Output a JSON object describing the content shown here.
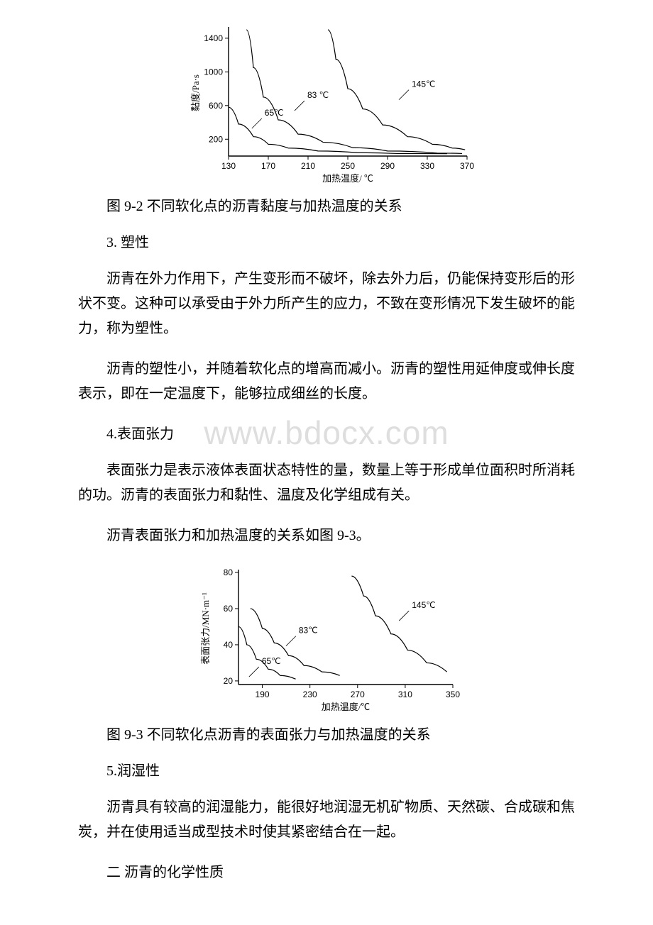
{
  "fig92": {
    "ylabel": "黏度/Pa·s",
    "xlabel": "加热温度/ ℃",
    "yticks": [
      200,
      600,
      1000,
      1400
    ],
    "xticks": [
      130,
      170,
      210,
      250,
      290,
      330,
      370
    ],
    "curve_color": "#000000",
    "axis_color": "#000000",
    "background": "#ffffff",
    "line_width": 1.2,
    "curves": [
      {
        "label": "65℃",
        "label_x": 162,
        "label_y": 430,
        "points": [
          [
            130,
            580
          ],
          [
            140,
            380
          ],
          [
            155,
            230
          ],
          [
            170,
            140
          ],
          [
            190,
            95
          ],
          [
            220,
            60
          ],
          [
            260,
            40
          ],
          [
            300,
            30
          ],
          [
            350,
            28
          ]
        ]
      },
      {
        "label": "83 ℃",
        "label_x": 205,
        "label_y": 640,
        "points": [
          [
            148,
            1500
          ],
          [
            155,
            1050
          ],
          [
            165,
            700
          ],
          [
            180,
            430
          ],
          [
            200,
            260
          ],
          [
            225,
            165
          ],
          [
            255,
            100
          ],
          [
            290,
            60
          ],
          [
            340,
            35
          ],
          [
            365,
            30
          ]
        ]
      },
      {
        "label": "145℃",
        "label_x": 310,
        "label_y": 770,
        "points": [
          [
            230,
            1500
          ],
          [
            238,
            1150
          ],
          [
            250,
            800
          ],
          [
            265,
            560
          ],
          [
            285,
            370
          ],
          [
            310,
            230
          ],
          [
            335,
            140
          ],
          [
            355,
            95
          ],
          [
            368,
            75
          ]
        ]
      }
    ]
  },
  "fig93": {
    "ylabel": "表面张力/MN·m⁻¹",
    "xlabel": "加热温度/℃",
    "yticks": [
      20,
      40,
      60,
      80
    ],
    "xticks": [
      190,
      230,
      270,
      310,
      350
    ],
    "curve_color": "#000000",
    "axis_color": "#000000",
    "background": "#ffffff",
    "line_width": 1.2,
    "curves": [
      {
        "label": "65℃",
        "label_x": 186,
        "label_y": 27,
        "points": [
          [
            170,
            50
          ],
          [
            177,
            40
          ],
          [
            185,
            32
          ],
          [
            195,
            26.5
          ],
          [
            205,
            23
          ],
          [
            218,
            21
          ]
        ]
      },
      {
        "label": "83℃",
        "label_x": 217,
        "label_y": 44,
        "points": [
          [
            180,
            60
          ],
          [
            190,
            49
          ],
          [
            200,
            41
          ],
          [
            212,
            34
          ],
          [
            225,
            28.5
          ],
          [
            240,
            25
          ],
          [
            255,
            23
          ]
        ]
      },
      {
        "label": "145℃",
        "label_x": 312,
        "label_y": 58,
        "points": [
          [
            265,
            78
          ],
          [
            275,
            67
          ],
          [
            285,
            56
          ],
          [
            298,
            46
          ],
          [
            312,
            37
          ],
          [
            328,
            30
          ],
          [
            345,
            25
          ]
        ]
      }
    ]
  },
  "text": {
    "caption92": "图 9-2 不同软化点的沥青黏度与加热温度的关系",
    "h3": "3. 塑性",
    "p3a": "沥青在外力作用下，产生变形而不破坏，除去外力后，仍能保持变形后的形状不变。这种可以承受由于外力所产生的应力，不致在变形情况下发生破坏的能力，称为塑性。",
    "p3b": "沥青的塑性小，并随着软化点的增高而减小。沥青的塑性用延伸度或伸长度表示，即在一定温度下，能够拉成细丝的长度。",
    "h4": "4.表面张力",
    "p4a": "表面张力是表示液体表面状态特性的量，数量上等于形成单位面积时所消耗的功。沥青的表面张力和黏性、温度及化学组成有关。",
    "p4b": "沥青表面张力和加热温度的关系如图 9-3。",
    "caption93": "图 9-3 不同软化点沥青的表面张力与加热温度的关系",
    "h5": "5.润湿性",
    "p5": "沥青具有较高的润湿能力，能很好地润湿无机矿物质、天然碳、合成碳和焦炭，并在使用适当成型技术时使其紧密结合在一起。",
    "h_chem": "二 沥青的化学性质",
    "watermark": "www.bdocx.com"
  }
}
